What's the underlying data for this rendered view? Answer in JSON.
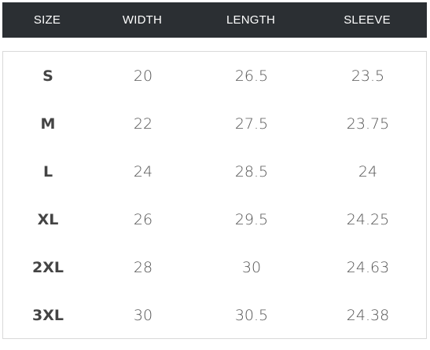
{
  "header": {
    "columns": [
      "SIZE",
      "WIDTH",
      "LENGTH",
      "SLEEVE"
    ]
  },
  "rows": [
    {
      "size": "S",
      "width": "20",
      "length": "26.5",
      "sleeve": "23.5"
    },
    {
      "size": "M",
      "width": "22",
      "length": "27.5",
      "sleeve": "23.75"
    },
    {
      "size": "L",
      "width": "24",
      "length": "28.5",
      "sleeve": "24"
    },
    {
      "size": "XL",
      "width": "26",
      "length": "29.5",
      "sleeve": "24.25"
    },
    {
      "size": "2XL",
      "width": "28",
      "length": "30",
      "sleeve": "24.63"
    },
    {
      "size": "3XL",
      "width": "30",
      "length": "30.5",
      "sleeve": "24.38"
    }
  ]
}
